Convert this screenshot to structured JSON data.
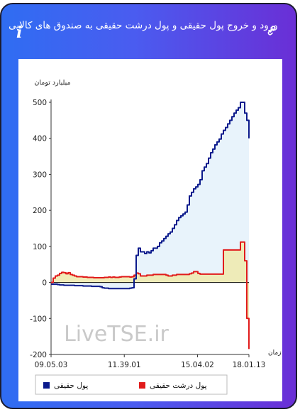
{
  "header": {
    "title": "ورود و خروج پول حقیقی و پول درشت حقیقی به صندوق های کالایی",
    "info_icon": "ℹ",
    "link_icon_name": "link-icon"
  },
  "watermark": "LiveTSE.ir",
  "colors": {
    "card_gradient_start": "#2f6df2",
    "card_gradient_end": "#6a2fd6",
    "real_money_line": "#0b1a8c",
    "real_money_fill": "#e6f2fb",
    "big_money_line": "#e11b1b",
    "big_money_fill": "#efe9ab",
    "zero_line": "#000000",
    "axis": "#333333"
  },
  "chart_data": {
    "type": "line",
    "ylabel": "میلیارد تومان",
    "xlabel": "زمان",
    "ylim": [
      -200,
      500
    ],
    "yticks": [
      500,
      400,
      300,
      200,
      100,
      0,
      -100,
      -200
    ],
    "xticks": [
      "09.05.03",
      "11.39.01",
      "15.04.02",
      "18.01.13"
    ],
    "legend_position": "bottom",
    "series": [
      {
        "name": "پول حقیقی",
        "x": [
          0,
          3,
          6,
          9,
          12,
          15,
          18,
          21,
          24,
          27,
          30,
          33,
          36,
          39,
          42,
          45,
          48,
          51,
          54,
          57,
          60,
          63,
          66,
          69,
          72,
          75,
          78,
          81,
          84,
          87,
          90,
          93,
          96,
          99,
          102,
          105,
          108,
          111,
          114,
          117,
          120,
          123,
          126,
          129,
          132,
          135,
          138,
          141,
          144,
          147,
          150,
          153,
          156,
          159,
          162,
          165,
          168,
          171,
          174,
          177,
          180,
          183,
          186,
          189,
          192,
          195,
          198,
          201,
          204,
          207,
          210,
          213,
          216,
          219,
          222,
          225,
          228,
          231,
          234,
          237,
          240,
          243,
          246,
          249,
          252,
          255,
          258,
          261,
          264,
          267,
          270,
          273,
          276,
          279
        ],
        "values": [
          -5,
          -5,
          -5,
          -6,
          -7,
          -7,
          -8,
          -8,
          -8,
          -8,
          -8,
          -9,
          -9,
          -9,
          -9,
          -10,
          -10,
          -10,
          -10,
          -11,
          -11,
          -11,
          -11,
          -12,
          -15,
          -16,
          -16,
          -17,
          -17,
          -17,
          -17,
          -17,
          -17,
          -17,
          -17,
          -17,
          -17,
          -16,
          -15,
          10,
          75,
          95,
          85,
          85,
          80,
          85,
          82,
          88,
          95,
          95,
          100,
          110,
          115,
          122,
          128,
          135,
          140,
          150,
          160,
          172,
          180,
          185,
          190,
          195,
          215,
          240,
          250,
          260,
          265,
          272,
          285,
          310,
          320,
          330,
          345,
          360,
          370,
          382,
          390,
          398,
          412,
          422,
          430,
          440,
          450,
          460,
          470,
          478,
          485,
          500,
          500,
          470,
          450,
          400
        ]
      },
      {
        "name": "پول درشت حقیقی",
        "x": [
          0,
          3,
          6,
          9,
          12,
          15,
          18,
          21,
          24,
          27,
          30,
          33,
          36,
          39,
          42,
          45,
          48,
          51,
          54,
          57,
          60,
          63,
          66,
          69,
          72,
          75,
          78,
          81,
          84,
          87,
          90,
          93,
          96,
          99,
          102,
          105,
          108,
          111,
          114,
          117,
          120,
          123,
          126,
          129,
          132,
          135,
          138,
          141,
          144,
          147,
          150,
          153,
          156,
          159,
          162,
          165,
          168,
          171,
          174,
          177,
          180,
          183,
          186,
          189,
          192,
          195,
          198,
          201,
          204,
          207,
          210,
          213,
          216,
          219,
          222,
          225,
          228,
          231,
          234,
          237,
          240,
          243,
          246,
          249,
          252,
          255,
          258,
          261,
          264,
          267,
          270,
          273,
          276,
          279
        ],
        "values": [
          0,
          12,
          18,
          20,
          25,
          28,
          27,
          24,
          27,
          22,
          20,
          18,
          16,
          16,
          16,
          15,
          15,
          14,
          14,
          14,
          13,
          13,
          13,
          13,
          13,
          14,
          14,
          15,
          14,
          15,
          14,
          14,
          15,
          16,
          16,
          16,
          16,
          15,
          16,
          20,
          26,
          24,
          18,
          18,
          18,
          20,
          20,
          20,
          22,
          22,
          22,
          22,
          22,
          22,
          20,
          18,
          18,
          20,
          20,
          22,
          22,
          22,
          22,
          22,
          22,
          24,
          26,
          30,
          30,
          25,
          23,
          23,
          23,
          23,
          23,
          23,
          23,
          23,
          23,
          23,
          23,
          90,
          90,
          90,
          90,
          90,
          90,
          90,
          90,
          112,
          112,
          60,
          -100,
          -185
        ]
      }
    ],
    "x_domain": [
      0,
      279
    ]
  }
}
